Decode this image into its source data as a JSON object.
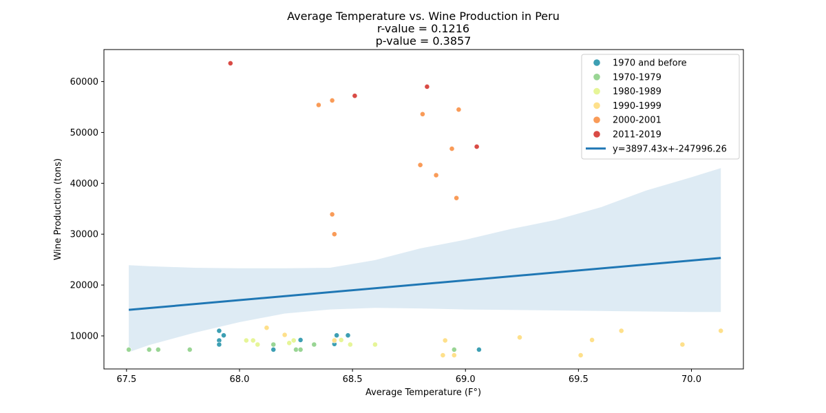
{
  "chart_data": {
    "type": "scatter",
    "title_lines": [
      "Average Temperature vs. Wine Production in Peru",
      "r-value = 0.1216",
      "p-value = 0.3857"
    ],
    "xlabel": "Average Temperature (F°)",
    "ylabel": "Wine Production (tons)",
    "xlim": [
      67.4,
      70.23
    ],
    "ylim": [
      3500,
      66300
    ],
    "xticks": [
      67.5,
      68.0,
      68.5,
      69.0,
      69.5,
      70.0
    ],
    "xtick_labels": [
      "67.5",
      "68.0",
      "68.5",
      "69.0",
      "69.5",
      "70.0"
    ],
    "yticks": [
      10000,
      20000,
      30000,
      40000,
      50000,
      60000
    ],
    "ytick_labels": [
      "10000",
      "20000",
      "30000",
      "40000",
      "50000",
      "60000"
    ],
    "grid": false,
    "legend_position": "top-right",
    "series": [
      {
        "name": "1970 and before",
        "color": "#3d9fb3",
        "points": [
          [
            67.91,
            11000
          ],
          [
            67.93,
            10100
          ],
          [
            67.91,
            9100
          ],
          [
            67.91,
            8300
          ],
          [
            68.15,
            7300
          ],
          [
            68.27,
            9200
          ],
          [
            68.43,
            10100
          ],
          [
            68.48,
            10100
          ],
          [
            68.42,
            8400
          ],
          [
            69.06,
            7300
          ]
        ]
      },
      {
        "name": "1970-1979",
        "color": "#99d594",
        "points": [
          [
            67.51,
            7300
          ],
          [
            67.6,
            7300
          ],
          [
            67.64,
            7300
          ],
          [
            67.78,
            7300
          ],
          [
            68.15,
            8300
          ],
          [
            68.25,
            7300
          ],
          [
            68.27,
            7300
          ],
          [
            68.33,
            8300
          ],
          [
            68.95,
            7300
          ]
        ]
      },
      {
        "name": "1980-1989",
        "color": "#e6f598",
        "points": [
          [
            68.03,
            9100
          ],
          [
            68.06,
            9100
          ],
          [
            68.08,
            8300
          ],
          [
            68.22,
            8600
          ],
          [
            68.24,
            9100
          ],
          [
            68.42,
            9200
          ],
          [
            68.45,
            9200
          ],
          [
            68.49,
            8300
          ],
          [
            68.6,
            8300
          ]
        ]
      },
      {
        "name": "1990-1999",
        "color": "#fee08b",
        "points": [
          [
            68.12,
            11600
          ],
          [
            68.2,
            10200
          ],
          [
            68.42,
            9100
          ],
          [
            68.9,
            6200
          ],
          [
            68.91,
            9100
          ],
          [
            68.95,
            6200
          ],
          [
            69.24,
            9700
          ],
          [
            69.51,
            6200
          ],
          [
            69.56,
            9200
          ],
          [
            69.69,
            11000
          ],
          [
            69.96,
            8300
          ],
          [
            70.13,
            11000
          ]
        ]
      },
      {
        "name": "2000-2001",
        "color": "#f99b58",
        "points": [
          [
            68.35,
            55400
          ],
          [
            68.41,
            56300
          ],
          [
            68.41,
            33900
          ],
          [
            68.42,
            30000
          ],
          [
            68.8,
            43600
          ],
          [
            68.81,
            53600
          ],
          [
            68.87,
            41600
          ],
          [
            68.94,
            46800
          ],
          [
            68.96,
            37100
          ],
          [
            68.97,
            54500
          ]
        ]
      },
      {
        "name": "2011-2019",
        "color": "#d94b45",
        "points": [
          [
            67.96,
            63600
          ],
          [
            68.51,
            57200
          ],
          [
            68.83,
            59000
          ],
          [
            69.05,
            47200
          ]
        ]
      }
    ],
    "regression": {
      "name": "y=3897.43x+-247996.26",
      "color": "#1f77b4",
      "slope": 3897.43,
      "intercept": -247996.26,
      "x_range": [
        67.51,
        70.13
      ],
      "band_color": "#1f77b4",
      "band_upper": [
        [
          67.51,
          23900
        ],
        [
          67.6,
          23700
        ],
        [
          67.8,
          23400
        ],
        [
          68.0,
          23300
        ],
        [
          68.2,
          23300
        ],
        [
          68.4,
          23400
        ],
        [
          68.6,
          24900
        ],
        [
          68.8,
          27200
        ],
        [
          69.0,
          28900
        ],
        [
          69.2,
          31000
        ],
        [
          69.4,
          32800
        ],
        [
          69.6,
          35300
        ],
        [
          69.8,
          38600
        ],
        [
          70.0,
          41200
        ],
        [
          70.13,
          43000
        ]
      ],
      "band_lower": [
        [
          67.51,
          6800
        ],
        [
          67.6,
          8200
        ],
        [
          67.8,
          10600
        ],
        [
          68.0,
          12700
        ],
        [
          68.2,
          14400
        ],
        [
          68.4,
          15200
        ],
        [
          68.6,
          15500
        ],
        [
          68.8,
          15400
        ],
        [
          69.0,
          15200
        ],
        [
          69.2,
          15100
        ],
        [
          69.4,
          15000
        ],
        [
          69.6,
          14900
        ],
        [
          69.8,
          14800
        ],
        [
          70.0,
          14700
        ],
        [
          70.13,
          14700
        ]
      ]
    }
  }
}
